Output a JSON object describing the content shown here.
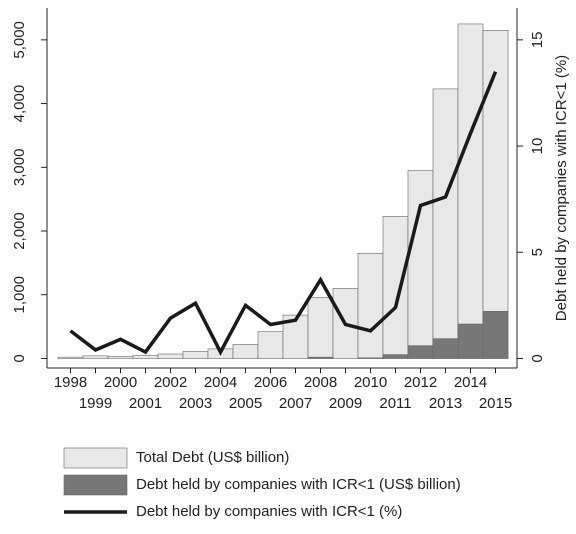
{
  "chart_data": {
    "type": "bar",
    "y2label": "Debt held by companies with ICR<1 (%)",
    "categories": [
      "1998",
      "1999",
      "2000",
      "2001",
      "2002",
      "2003",
      "2004",
      "2005",
      "2006",
      "2007",
      "2008",
      "2009",
      "2010",
      "2011",
      "2012",
      "2013",
      "2014",
      "2015"
    ],
    "series": [
      {
        "name": "Total Debt (US$ billion)",
        "type": "bar",
        "color": "#e8e8e8",
        "values": [
          20,
          40,
          30,
          50,
          70,
          110,
          150,
          220,
          420,
          680,
          960,
          1100,
          1650,
          2230,
          2950,
          4230,
          5250,
          5150
        ]
      },
      {
        "name": "Debt held by companies with ICR<1 (US$ billion)",
        "type": "bar",
        "color": "#777777",
        "values": [
          0,
          0,
          0,
          0,
          0,
          0,
          0,
          0,
          0,
          0,
          20,
          0,
          10,
          60,
          200,
          310,
          540,
          740
        ]
      },
      {
        "name": "Debt held by companies with ICR<1 (%)",
        "type": "line",
        "axis": "y2",
        "color": "#1a1a1a",
        "values": [
          1.3,
          0.4,
          0.9,
          0.3,
          1.9,
          2.6,
          0.3,
          2.5,
          1.6,
          1.8,
          3.7,
          1.6,
          1.3,
          2.4,
          7.2,
          7.6,
          10.6,
          13.5
        ]
      }
    ],
    "ylim": [
      -150,
      5500
    ],
    "yticks": [
      0,
      {
        "value": 1000,
        "label": "1,000"
      },
      {
        "value": 2000,
        "label": "2,000"
      },
      {
        "value": 3000,
        "label": "3,000"
      },
      {
        "value": 4000,
        "label": "4,000"
      },
      {
        "value": 5000,
        "label": "5,000"
      }
    ],
    "y2lim": [
      -0.45,
      16.5
    ],
    "y2ticks": [
      0,
      5,
      10,
      15
    ]
  }
}
